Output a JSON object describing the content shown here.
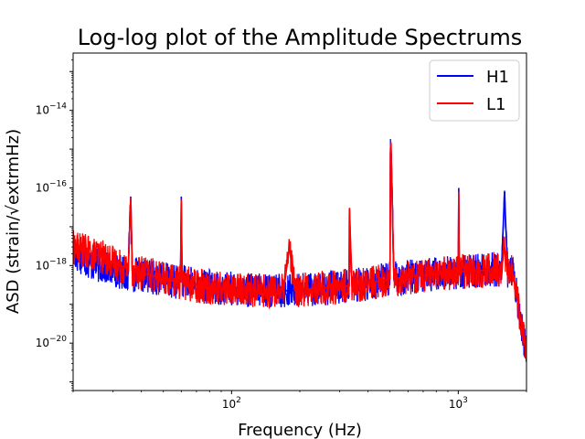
{
  "chart_data": {
    "type": "line",
    "title": "Log-log plot of the Amplitude Spectrums",
    "xlabel": "Frequency (Hz)",
    "ylabel": "ASD (strain/√extrmHz)",
    "xscale": "log",
    "yscale": "log",
    "xlim": [
      20,
      2000
    ],
    "ylim": [
      6e-22,
      3e-13
    ],
    "x_ticks": [
      {
        "value": 100,
        "base": "10",
        "exp": "2"
      },
      {
        "value": 1000,
        "base": "10",
        "exp": "3"
      }
    ],
    "y_ticks": [
      {
        "value": 1e-14,
        "base": "10",
        "exp": "−14"
      },
      {
        "value": 1e-16,
        "base": "10",
        "exp": "−16"
      },
      {
        "value": 1e-18,
        "base": "10",
        "exp": "−18"
      },
      {
        "value": 1e-20,
        "base": "10",
        "exp": "−20"
      }
    ],
    "legend_position": "top-right",
    "series": [
      {
        "name": "H1",
        "color": "#0000ff",
        "x": [
          20,
          22,
          24,
          26,
          28,
          30,
          32,
          34,
          35,
          35.9,
          36.5,
          38,
          40,
          45,
          50,
          55,
          59.5,
          60,
          60.5,
          65,
          70,
          80,
          90,
          100,
          110,
          120,
          130,
          150,
          170,
          180,
          190,
          200,
          250,
          300,
          330,
          331,
          340,
          400,
          450,
          500,
          502,
          505,
          510,
          520,
          550,
          600,
          700,
          800,
          900,
          1000,
          1005,
          1010,
          1100,
          1200,
          1300,
          1400,
          1500,
          1550,
          1600,
          1650,
          1700,
          1750,
          1800,
          1900,
          2000
        ],
        "y": [
          2e-18,
          1.6e-18,
          1.1e-18,
          1e-18,
          9e-19,
          8e-19,
          7e-19,
          6.5e-19,
          6.3e-19,
          6e-17,
          6e-19,
          5.5e-19,
          5.5e-19,
          5e-19,
          4.5e-19,
          4e-19,
          3.8e-19,
          6e-17,
          3.8e-19,
          3.5e-19,
          3.2e-19,
          2.8e-19,
          2.6e-19,
          2.5e-19,
          2.4e-19,
          2.3e-19,
          2.3e-19,
          2.3e-19,
          2.3e-19,
          2.2e-19,
          2.3e-19,
          2.4e-19,
          2.6e-19,
          2.8e-19,
          3e-19,
          2e-17,
          3e-19,
          3.5e-19,
          4e-19,
          4.5e-19,
          8e-16,
          1e-15,
          1e-16,
          4.5e-19,
          4.8e-19,
          5e-19,
          5.5e-19,
          6e-19,
          6.5e-19,
          6.5e-19,
          1e-16,
          7e-19,
          7e-19,
          7.2e-19,
          7.5e-19,
          8e-19,
          8e-19,
          7e-19,
          8e-17,
          7e-19,
          8e-19,
          6e-19,
          2e-19,
          3e-20,
          5e-21
        ]
      },
      {
        "name": "L1",
        "color": "#ff0000",
        "x": [
          20,
          22,
          24,
          26,
          28,
          30,
          32,
          34,
          35,
          35.9,
          36.5,
          38,
          40,
          45,
          50,
          55,
          59.5,
          60,
          60.5,
          65,
          70,
          80,
          90,
          100,
          110,
          120,
          130,
          150,
          170,
          180,
          190,
          200,
          250,
          300,
          330,
          331,
          340,
          400,
          450,
          500,
          502,
          505,
          510,
          520,
          550,
          600,
          700,
          800,
          900,
          1000,
          1005,
          1010,
          1100,
          1200,
          1300,
          1400,
          1500,
          1550,
          1600,
          1650,
          1700,
          1750,
          1800,
          1900,
          2000
        ],
        "y": [
          3e-18,
          2.5e-18,
          2e-18,
          1.8e-18,
          1.5e-18,
          1.2e-18,
          1e-18,
          9e-19,
          8.5e-19,
          5e-17,
          8e-19,
          7e-19,
          6.5e-19,
          5.5e-19,
          4.5e-19,
          4e-19,
          3.8e-19,
          5e-17,
          3.8e-19,
          3.4e-19,
          3.1e-19,
          2.8e-19,
          2.6e-19,
          2.5e-19,
          2.4e-19,
          2.3e-19,
          2.3e-19,
          2.3e-19,
          2.3e-19,
          3e-18,
          2.3e-19,
          2.4e-19,
          2.6e-19,
          2.8e-19,
          3e-19,
          3e-17,
          3e-19,
          3.5e-19,
          4e-19,
          4.5e-19,
          1e-15,
          1.5e-15,
          1e-16,
          4.5e-19,
          4.8e-19,
          5e-19,
          5.5e-19,
          6e-19,
          6.5e-19,
          6.5e-19,
          8e-17,
          7e-19,
          7e-19,
          7.2e-19,
          7.5e-19,
          8e-19,
          8e-19,
          7e-19,
          3e-18,
          7e-19,
          8e-19,
          6e-19,
          2e-19,
          3e-20,
          5e-21
        ]
      }
    ]
  }
}
